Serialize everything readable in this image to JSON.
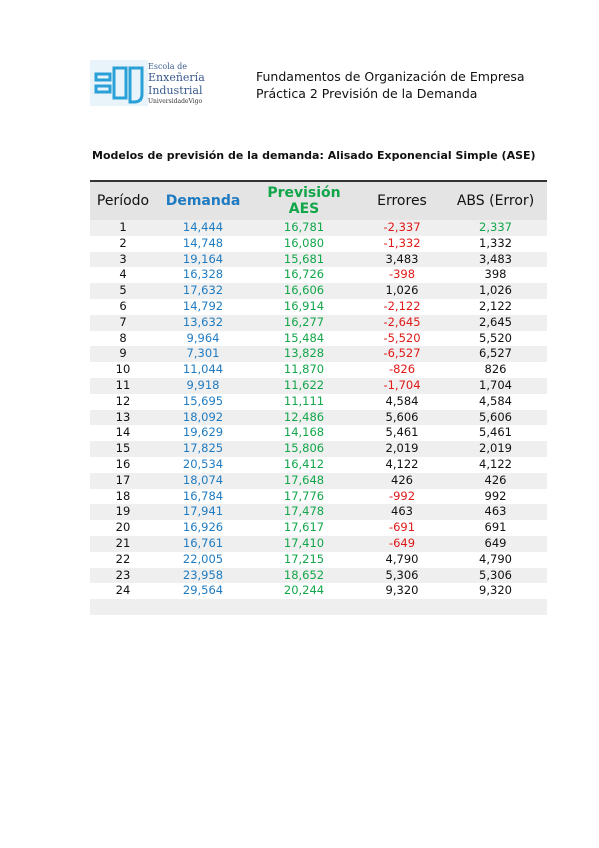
{
  "logo": {
    "lines": [
      "Escola de",
      "Enxeñería",
      "Industrial",
      "UniversidadeVigo"
    ]
  },
  "header": {
    "title": "Fundamentos de Organización de Empresa",
    "subtitle": "Práctica 2 Previsión de la Demanda"
  },
  "section_title": "Modelos de previsión de la demanda: Alisado Exponencial Simple (ASE)",
  "table": {
    "columns": [
      "Período",
      "Demanda",
      "Previsión AES",
      "Errores",
      "ABS (Error)"
    ],
    "rows": [
      [
        "1",
        "14,444",
        "16,781",
        "-2,337",
        "2,337"
      ],
      [
        "2",
        "14,748",
        "16,080",
        "-1,332",
        "1,332"
      ],
      [
        "3",
        "19,164",
        "15,681",
        "3,483",
        "3,483"
      ],
      [
        "4",
        "16,328",
        "16,726",
        "-398",
        "398"
      ],
      [
        "5",
        "17,632",
        "16,606",
        "1,026",
        "1,026"
      ],
      [
        "6",
        "14,792",
        "16,914",
        "-2,122",
        "2,122"
      ],
      [
        "7",
        "13,632",
        "16,277",
        "-2,645",
        "2,645"
      ],
      [
        "8",
        "9,964",
        "15,484",
        "-5,520",
        "5,520"
      ],
      [
        "9",
        "7,301",
        "13,828",
        "-6,527",
        "6,527"
      ],
      [
        "10",
        "11,044",
        "11,870",
        "-826",
        "826"
      ],
      [
        "11",
        "9,918",
        "11,622",
        "-1,704",
        "1,704"
      ],
      [
        "12",
        "15,695",
        "11,111",
        "4,584",
        "4,584"
      ],
      [
        "13",
        "18,092",
        "12,486",
        "5,606",
        "5,606"
      ],
      [
        "14",
        "19,629",
        "14,168",
        "5,461",
        "5,461"
      ],
      [
        "15",
        "17,825",
        "15,806",
        "2,019",
        "2,019"
      ],
      [
        "16",
        "20,534",
        "16,412",
        "4,122",
        "4,122"
      ],
      [
        "17",
        "18,074",
        "17,648",
        "426",
        "426"
      ],
      [
        "18",
        "16,784",
        "17,776",
        "-992",
        "992"
      ],
      [
        "19",
        "17,941",
        "17,478",
        "463",
        "463"
      ],
      [
        "20",
        "16,926",
        "17,617",
        "-691",
        "691"
      ],
      [
        "21",
        "16,761",
        "17,410",
        "-649",
        "649"
      ],
      [
        "22",
        "22,005",
        "17,215",
        "4,790",
        "4,790"
      ],
      [
        "23",
        "23,958",
        "18,652",
        "5,306",
        "5,306"
      ],
      [
        "24",
        "29,564",
        "20,244",
        "9,320",
        "9,320"
      ]
    ]
  }
}
